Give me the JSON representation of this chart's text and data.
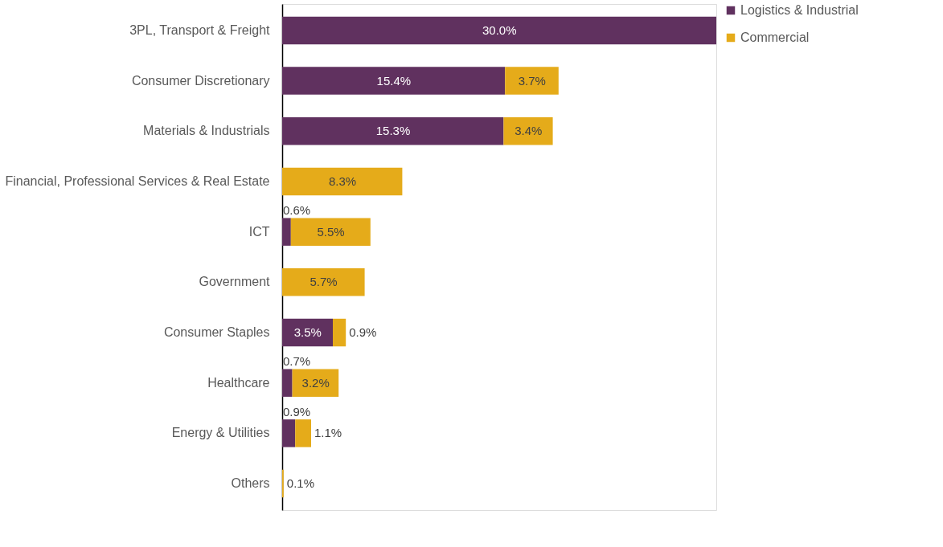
{
  "chart_data": {
    "type": "bar",
    "orientation": "horizontal",
    "stacked": true,
    "legend": "right",
    "categories": [
      "3PL, Transport & Freight",
      "Consumer Discretionary",
      "Materials & Industrials",
      "Financial, Professional Services & Real Estate",
      "ICT",
      "Government",
      "Consumer Staples",
      "Healthcare",
      "Energy & Utilities",
      "Others"
    ],
    "series": [
      {
        "name": "Logistics & Industrial",
        "color": "#60315f",
        "values": [
          30.0,
          15.4,
          15.3,
          null,
          0.6,
          null,
          3.5,
          0.7,
          0.9,
          null
        ],
        "value_labels": [
          "30.0%",
          "15.4%",
          "15.3%",
          null,
          "0.6%",
          null,
          "3.5%",
          "0.7%",
          "0.9%",
          null
        ]
      },
      {
        "name": "Commercial",
        "color": "#e5ab1a",
        "values": [
          null,
          3.7,
          3.4,
          8.3,
          5.5,
          5.7,
          0.9,
          3.2,
          1.1,
          0.1
        ],
        "value_labels": [
          null,
          "3.7%",
          "3.4%",
          "8.3%",
          "5.5%",
          "5.7%",
          "0.9%",
          "3.2%",
          "1.1%",
          "0.1%"
        ]
      }
    ]
  }
}
